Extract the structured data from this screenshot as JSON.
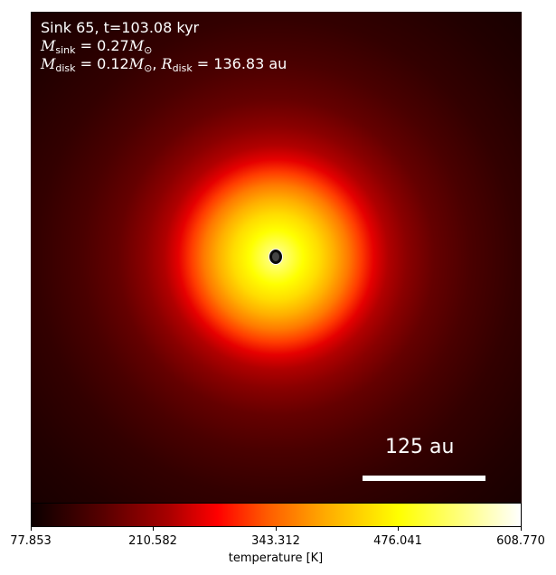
{
  "panel": {
    "info": {
      "line1": "Sink 65, t=103.08 kyr",
      "m_sink_symbol": "M",
      "m_sink_sub": "sink",
      "m_sink_value": " = 0.27",
      "m_unit_symbol": "M",
      "m_unit_sub": "⊙",
      "m_disk_symbol": "M",
      "m_disk_sub": "disk",
      "m_disk_value": " = 0.12",
      "m_disk_unit_symbol": "M",
      "m_disk_unit_sub": "⊙",
      "separator": ", ",
      "r_disk_symbol": "R",
      "r_disk_sub": "disk",
      "r_disk_value": " = 136.83 au"
    },
    "scale_bar_label": "125 au"
  },
  "colorbar": {
    "label": "temperature [K]",
    "ticks": [
      "77.853",
      "210.582",
      "343.312",
      "476.041",
      "608.770"
    ],
    "range": [
      77.853,
      608.77
    ],
    "colormap": "hot"
  }
}
